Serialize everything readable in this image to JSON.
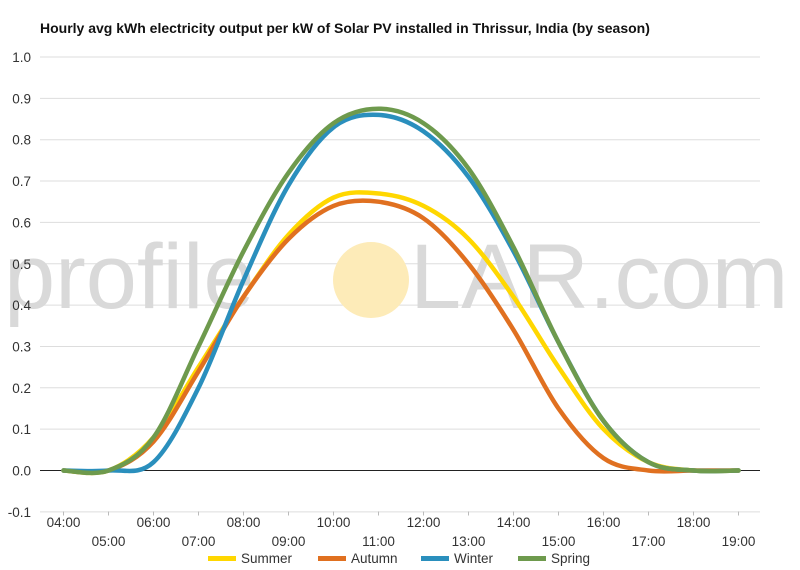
{
  "chart_data": {
    "type": "line",
    "title": "Hourly avg kWh electricity output per kW of Solar PV installed in Thrissur, India (by season)",
    "xlabel": "",
    "ylabel": "",
    "x_ticks_upper": [
      "04:00",
      "06:00",
      "08:00",
      "10:00",
      "12:00",
      "14:00",
      "16:00",
      "18:00"
    ],
    "x_ticks_lower": [
      "05:00",
      "07:00",
      "09:00",
      "11:00",
      "13:00",
      "15:00",
      "17:00",
      "19:00"
    ],
    "y_ticks": [
      "1.0",
      "0.9",
      "0.8",
      "0.7",
      "0.6",
      "0.5",
      "0.4",
      "0.3",
      "0.2",
      "0.1",
      "0.0",
      "-0.1"
    ],
    "ylim": [
      -0.1,
      1.0
    ],
    "grid": true,
    "legend_position": "bottom",
    "x": [
      4,
      5,
      6,
      7,
      8,
      9,
      10,
      11,
      12,
      13,
      14,
      15,
      16,
      17,
      18,
      19
    ],
    "series": [
      {
        "name": "Summer",
        "color": "#ffd700",
        "values": [
          0.0,
          0.0,
          0.08,
          0.25,
          0.42,
          0.57,
          0.66,
          0.67,
          0.64,
          0.56,
          0.42,
          0.25,
          0.1,
          0.02,
          0.0,
          0.0
        ]
      },
      {
        "name": "Autumn",
        "color": "#e07020",
        "values": [
          0.0,
          0.0,
          0.07,
          0.24,
          0.42,
          0.56,
          0.64,
          0.65,
          0.61,
          0.5,
          0.34,
          0.15,
          0.03,
          0.0,
          0.0,
          0.0
        ]
      },
      {
        "name": "Winter",
        "color": "#2a8fbd",
        "values": [
          0.0,
          0.0,
          0.02,
          0.2,
          0.46,
          0.69,
          0.83,
          0.86,
          0.82,
          0.71,
          0.53,
          0.31,
          0.12,
          0.02,
          0.0,
          0.0
        ]
      },
      {
        "name": "Spring",
        "color": "#6e9a4d",
        "values": [
          0.0,
          0.0,
          0.08,
          0.3,
          0.53,
          0.72,
          0.84,
          0.875,
          0.84,
          0.73,
          0.54,
          0.31,
          0.12,
          0.02,
          0.0,
          0.0
        ]
      }
    ]
  },
  "watermark": {
    "left": "profile",
    "right": "LAR.com",
    "sun_color": "#fdebb8",
    "text_color": "#d9d9d9"
  }
}
